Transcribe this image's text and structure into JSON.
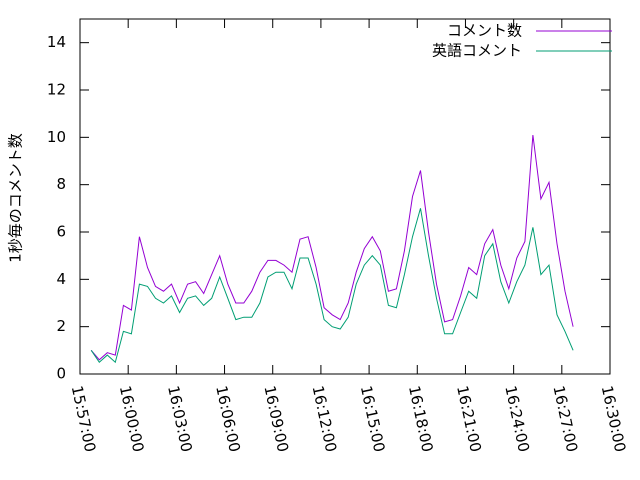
{
  "chart_data": {
    "type": "line",
    "ylabel": "1秒毎のコメント数",
    "x": [
      "15:57:42",
      "15:58:12",
      "15:58:42",
      "15:59:12",
      "15:59:42",
      "16:00:12",
      "16:00:42",
      "16:01:12",
      "16:01:42",
      "16:02:12",
      "16:02:42",
      "16:03:12",
      "16:03:42",
      "16:04:12",
      "16:04:42",
      "16:05:12",
      "16:05:42",
      "16:06:12",
      "16:06:42",
      "16:07:12",
      "16:07:42",
      "16:08:12",
      "16:08:42",
      "16:09:12",
      "16:09:42",
      "16:10:12",
      "16:10:42",
      "16:11:12",
      "16:11:42",
      "16:12:12",
      "16:12:42",
      "16:13:12",
      "16:13:42",
      "16:14:12",
      "16:14:42",
      "16:15:12",
      "16:15:42",
      "16:16:12",
      "16:16:42",
      "16:17:12",
      "16:17:42",
      "16:18:12",
      "16:18:42",
      "16:19:12",
      "16:19:42",
      "16:20:12",
      "16:20:42",
      "16:21:12",
      "16:21:42",
      "16:22:12",
      "16:22:42",
      "16:23:12",
      "16:23:42",
      "16:24:12",
      "16:24:42",
      "16:25:12",
      "16:25:42",
      "16:26:12",
      "16:26:42",
      "16:27:12",
      "16:27:42"
    ],
    "series": [
      {
        "name": "コメント数",
        "color": "#9400d3",
        "values": [
          1.0,
          0.6,
          0.9,
          0.8,
          2.9,
          2.7,
          5.8,
          4.5,
          3.7,
          3.5,
          3.8,
          3.0,
          3.8,
          3.9,
          3.4,
          4.2,
          5.0,
          3.8,
          3.0,
          3.0,
          3.5,
          4.3,
          4.8,
          4.8,
          4.6,
          4.3,
          5.7,
          5.8,
          4.5,
          2.8,
          2.5,
          2.3,
          3.0,
          4.3,
          5.3,
          5.8,
          5.2,
          3.5,
          3.6,
          5.2,
          7.5,
          8.6,
          6.0,
          3.8,
          2.2,
          2.3,
          3.3,
          4.5,
          4.2,
          5.5,
          6.1,
          4.6,
          3.6,
          4.9,
          5.6,
          10.1,
          7.4,
          8.1,
          5.5,
          3.5,
          2.0
        ]
      },
      {
        "name": "英語コメント",
        "color": "#009e73",
        "values": [
          1.0,
          0.5,
          0.8,
          0.5,
          1.8,
          1.7,
          3.8,
          3.7,
          3.2,
          3.0,
          3.3,
          2.6,
          3.2,
          3.3,
          2.9,
          3.2,
          4.1,
          3.2,
          2.3,
          2.4,
          2.4,
          3.0,
          4.1,
          4.3,
          4.3,
          3.6,
          4.9,
          4.9,
          3.8,
          2.3,
          2.0,
          1.9,
          2.4,
          3.8,
          4.6,
          5.0,
          4.6,
          2.9,
          2.8,
          4.2,
          5.8,
          7.0,
          5.0,
          3.2,
          1.7,
          1.7,
          2.6,
          3.5,
          3.2,
          5.0,
          5.5,
          3.9,
          3.0,
          3.9,
          4.6,
          6.2,
          4.2,
          4.6,
          2.5,
          1.8,
          1.0
        ]
      }
    ],
    "xlim": [
      "15:57:00",
      "16:30:00"
    ],
    "xticks": [
      "15:57:00",
      "16:00:00",
      "16:03:00",
      "16:06:00",
      "16:09:00",
      "16:12:00",
      "16:15:00",
      "16:18:00",
      "16:21:00",
      "16:24:00",
      "16:27:00",
      "16:30:00"
    ],
    "ylim": [
      0,
      15
    ],
    "yticks": [
      0,
      2,
      4,
      6,
      8,
      10,
      12,
      14
    ],
    "legend": "top-right"
  }
}
